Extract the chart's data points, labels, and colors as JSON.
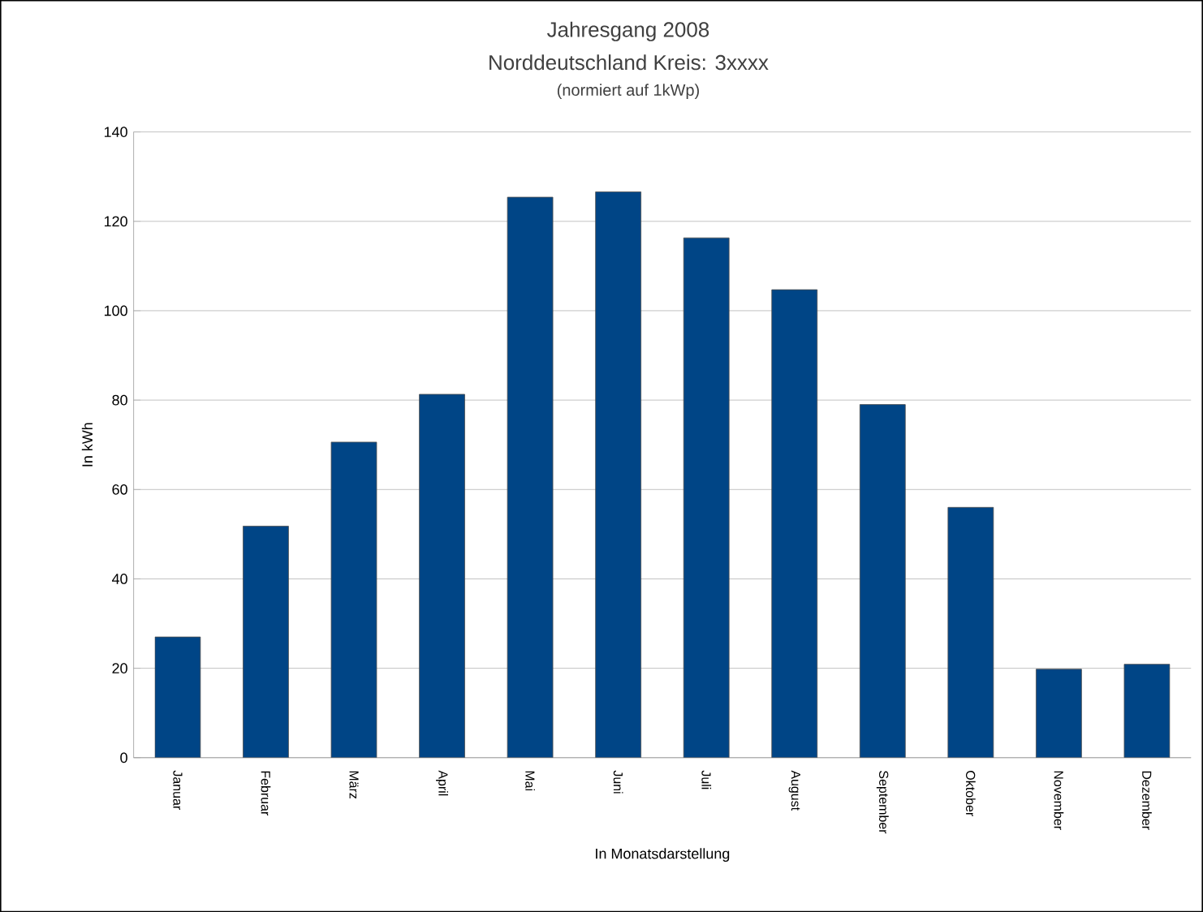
{
  "chart_data": {
    "type": "bar",
    "title": "Jahresgang 2008",
    "subtitle": "Norddeutschland Kreis: 3xxxx",
    "annotations": [
      "(normiert auf 1kWp)"
    ],
    "xlabel": "In Monatsdarstellung",
    "ylabel": "In kWh",
    "categories": [
      "Januar",
      "Februar",
      "März",
      "April",
      "Mai",
      "Juni",
      "Juli",
      "August",
      "September",
      "Oktober",
      "November",
      "Dezember"
    ],
    "values": [
      27.0,
      51.8,
      70.6,
      81.3,
      125.4,
      126.6,
      116.3,
      104.7,
      79.0,
      56.0,
      19.8,
      20.9
    ],
    "color": "#004586",
    "ylim": [
      0,
      140
    ],
    "yticks": [
      0,
      20,
      40,
      60,
      80,
      100,
      120,
      140
    ],
    "grid": "y"
  }
}
